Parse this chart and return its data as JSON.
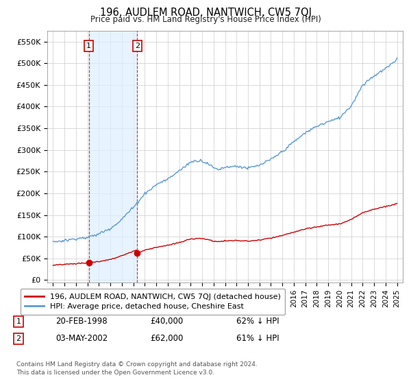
{
  "title": "196, AUDLEM ROAD, NANTWICH, CW5 7QJ",
  "subtitle": "Price paid vs. HM Land Registry's House Price Index (HPI)",
  "ylabel_ticks": [
    0,
    50000,
    100000,
    150000,
    200000,
    250000,
    300000,
    350000,
    400000,
    450000,
    500000,
    550000
  ],
  "ylabel_labels": [
    "£0",
    "£50K",
    "£100K",
    "£150K",
    "£200K",
    "£250K",
    "£300K",
    "£350K",
    "£400K",
    "£450K",
    "£500K",
    "£550K"
  ],
  "xlim": [
    1994.5,
    2025.5
  ],
  "ylim": [
    -5000,
    575000
  ],
  "hpi_color": "#5b9bd5",
  "price_color": "#cc0000",
  "shade_color": "#ddeeff",
  "sale1_year": 1998.13,
  "sale1_price": 40000,
  "sale1_label": "1",
  "sale1_date": "20-FEB-1998",
  "sale1_amount": "£40,000",
  "sale1_pct": "62% ↓ HPI",
  "sale2_year": 2002.34,
  "sale2_price": 62000,
  "sale2_label": "2",
  "sale2_date": "03-MAY-2002",
  "sale2_amount": "£62,000",
  "sale2_pct": "61% ↓ HPI",
  "legend_line1": "196, AUDLEM ROAD, NANTWICH, CW5 7QJ (detached house)",
  "legend_line2": "HPI: Average price, detached house, Cheshire East",
  "footer1": "Contains HM Land Registry data © Crown copyright and database right 2024.",
  "footer2": "This data is licensed under the Open Government Licence v3.0.",
  "bg_color": "#ffffff",
  "grid_color": "#cccccc"
}
